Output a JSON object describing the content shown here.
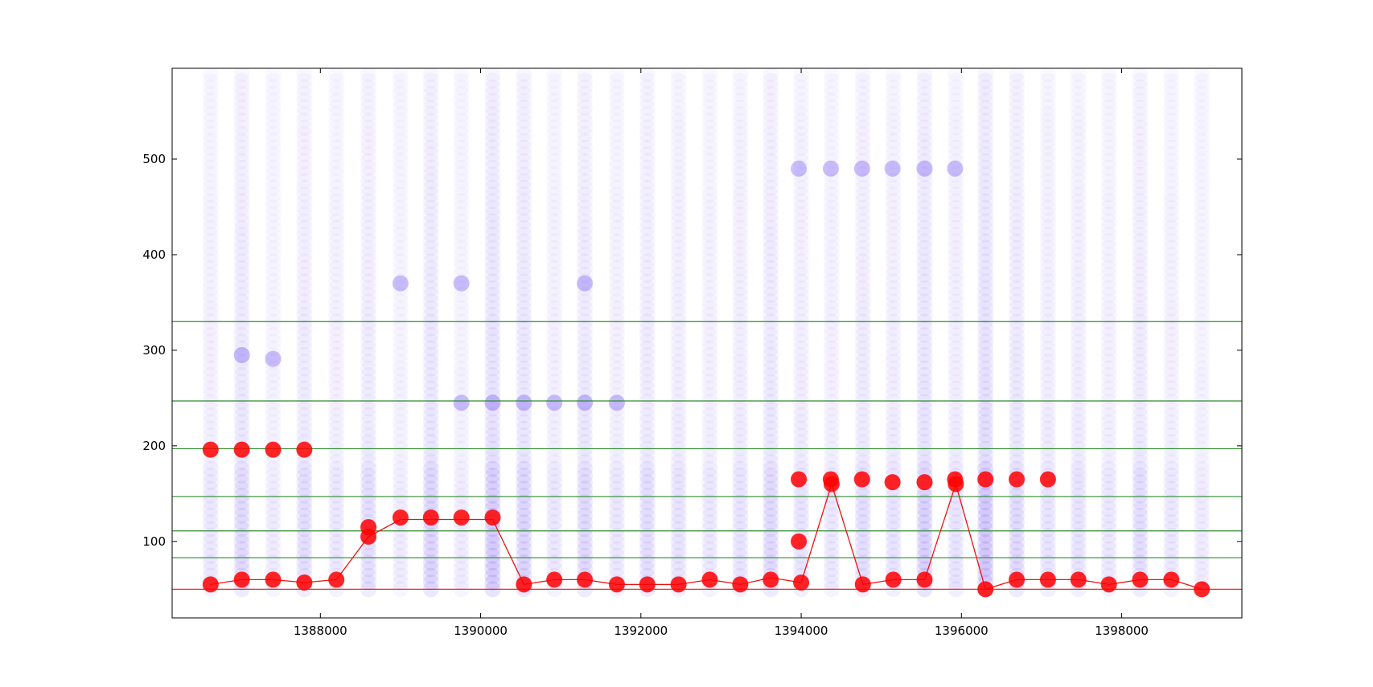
{
  "chart_data": {
    "type": "scatter",
    "title": "",
    "xlabel": "",
    "ylabel": "",
    "xlim": [
      1386150,
      1399500
    ],
    "ylim": [
      20,
      595
    ],
    "x_ticks": [
      1388000,
      1390000,
      1392000,
      1394000,
      1396000,
      1398000
    ],
    "y_ticks": [
      100,
      200,
      300,
      400,
      500
    ],
    "grid": false,
    "legend": "none",
    "colors": {
      "background": "#ffffff",
      "axes": "#000000",
      "scatter": "#6f4ff0",
      "selected": "#ff0000",
      "selected_line": "#ee1111",
      "hline": "#2e8b2e",
      "baseline": "#ee1111"
    },
    "column_x": [
      1386630,
      1387020,
      1387410,
      1387800,
      1388200,
      1388600,
      1389000,
      1389380,
      1389760,
      1390150,
      1390540,
      1390920,
      1391300,
      1391700,
      1392080,
      1392470,
      1392860,
      1393240,
      1393620,
      1394000,
      1394380,
      1394770,
      1395150,
      1395540,
      1395930,
      1396300,
      1396690,
      1397080,
      1397460,
      1397840,
      1398230,
      1398620,
      1399000
    ],
    "column_density": [
      0.3,
      0.6,
      0.2,
      0.5,
      0.3,
      0.5,
      0.2,
      0.7,
      0.2,
      0.9,
      0.7,
      0.3,
      0.6,
      0.3,
      0.5,
      0.4,
      0.3,
      0.4,
      0.6,
      0.4,
      0.3,
      0.5,
      0.4,
      0.8,
      0.4,
      1.0,
      0.6,
      0.4,
      0.4,
      0.3,
      0.5,
      0.3,
      0.2
    ],
    "horizontal_lines": [
      330,
      247,
      197,
      147,
      111,
      83
    ],
    "baseline_y": 50,
    "highlight_groups": [
      {
        "x": 1393970,
        "y": 490
      },
      {
        "x": 1394370,
        "y": 490
      },
      {
        "x": 1394760,
        "y": 490
      },
      {
        "x": 1395140,
        "y": 490
      },
      {
        "x": 1395540,
        "y": 490
      },
      {
        "x": 1395920,
        "y": 490
      },
      {
        "x": 1390920,
        "y": 245
      },
      {
        "x": 1391300,
        "y": 245
      },
      {
        "x": 1391700,
        "y": 245
      },
      {
        "x": 1389760,
        "y": 245
      },
      {
        "x": 1390150,
        "y": 245
      },
      {
        "x": 1390540,
        "y": 245
      },
      {
        "x": 1389000,
        "y": 370
      },
      {
        "x": 1389760,
        "y": 370
      },
      {
        "x": 1391300,
        "y": 370
      },
      {
        "x": 1387410,
        "y": 291
      },
      {
        "x": 1387020,
        "y": 295
      }
    ],
    "selected_points": [
      {
        "x": 1386630,
        "y": 196
      },
      {
        "x": 1387020,
        "y": 196
      },
      {
        "x": 1387410,
        "y": 196
      },
      {
        "x": 1387800,
        "y": 196
      },
      {
        "x": 1386630,
        "y": 55
      },
      {
        "x": 1387020,
        "y": 60
      },
      {
        "x": 1387410,
        "y": 60
      },
      {
        "x": 1387800,
        "y": 57
      },
      {
        "x": 1388200,
        "y": 60
      },
      {
        "x": 1388600,
        "y": 105
      },
      {
        "x": 1389000,
        "y": 125
      },
      {
        "x": 1389380,
        "y": 125
      },
      {
        "x": 1389760,
        "y": 125
      },
      {
        "x": 1390150,
        "y": 125
      },
      {
        "x": 1390540,
        "y": 55
      },
      {
        "x": 1390920,
        "y": 60
      },
      {
        "x": 1391300,
        "y": 60
      },
      {
        "x": 1391700,
        "y": 55
      },
      {
        "x": 1392080,
        "y": 55
      },
      {
        "x": 1392470,
        "y": 55
      },
      {
        "x": 1392860,
        "y": 60
      },
      {
        "x": 1393240,
        "y": 55
      },
      {
        "x": 1393620,
        "y": 60
      },
      {
        "x": 1394000,
        "y": 57
      },
      {
        "x": 1394380,
        "y": 160
      },
      {
        "x": 1394770,
        "y": 55
      },
      {
        "x": 1395150,
        "y": 60
      },
      {
        "x": 1395540,
        "y": 60
      },
      {
        "x": 1395930,
        "y": 160
      },
      {
        "x": 1396300,
        "y": 50
      },
      {
        "x": 1396690,
        "y": 60
      },
      {
        "x": 1397080,
        "y": 60
      },
      {
        "x": 1397460,
        "y": 60
      },
      {
        "x": 1397840,
        "y": 55
      },
      {
        "x": 1398230,
        "y": 60
      },
      {
        "x": 1398620,
        "y": 60
      },
      {
        "x": 1399000,
        "y": 50
      },
      {
        "x": 1393970,
        "y": 165
      },
      {
        "x": 1394370,
        "y": 165
      },
      {
        "x": 1394760,
        "y": 165
      },
      {
        "x": 1395140,
        "y": 162
      },
      {
        "x": 1395540,
        "y": 162
      },
      {
        "x": 1395920,
        "y": 165
      },
      {
        "x": 1396300,
        "y": 165
      },
      {
        "x": 1396690,
        "y": 165
      },
      {
        "x": 1397080,
        "y": 165
      },
      {
        "x": 1393970,
        "y": 100
      },
      {
        "x": 1388600,
        "y": 115
      }
    ],
    "selected_path": [
      {
        "x": 1386630,
        "y": 55
      },
      {
        "x": 1387020,
        "y": 60
      },
      {
        "x": 1387410,
        "y": 60
      },
      {
        "x": 1387800,
        "y": 57
      },
      {
        "x": 1388200,
        "y": 60
      },
      {
        "x": 1388600,
        "y": 105
      },
      {
        "x": 1389000,
        "y": 123
      },
      {
        "x": 1389380,
        "y": 123
      },
      {
        "x": 1389760,
        "y": 123
      },
      {
        "x": 1390150,
        "y": 123
      },
      {
        "x": 1390540,
        "y": 55
      },
      {
        "x": 1390920,
        "y": 60
      },
      {
        "x": 1391300,
        "y": 60
      },
      {
        "x": 1391700,
        "y": 55
      },
      {
        "x": 1392080,
        "y": 55
      },
      {
        "x": 1392470,
        "y": 55
      },
      {
        "x": 1392860,
        "y": 60
      },
      {
        "x": 1393240,
        "y": 55
      },
      {
        "x": 1393620,
        "y": 62
      },
      {
        "x": 1394000,
        "y": 57
      },
      {
        "x": 1394380,
        "y": 160
      },
      {
        "x": 1394770,
        "y": 55
      },
      {
        "x": 1395150,
        "y": 60
      },
      {
        "x": 1395540,
        "y": 60
      },
      {
        "x": 1395930,
        "y": 160
      },
      {
        "x": 1396300,
        "y": 50
      },
      {
        "x": 1396690,
        "y": 60
      },
      {
        "x": 1397080,
        "y": 60
      },
      {
        "x": 1397460,
        "y": 60
      },
      {
        "x": 1397840,
        "y": 55
      },
      {
        "x": 1398230,
        "y": 60
      },
      {
        "x": 1398620,
        "y": 60
      },
      {
        "x": 1399000,
        "y": 50
      }
    ]
  }
}
